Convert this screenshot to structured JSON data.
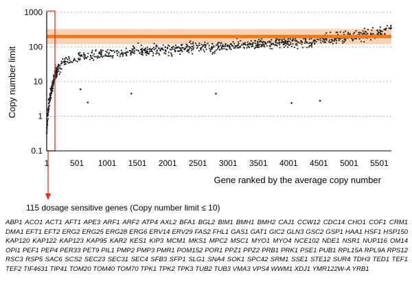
{
  "chart_data": {
    "type": "scatter",
    "scale_y": "log",
    "ylabel": "Copy number limit",
    "xlabel": "Gene ranked by the average copy number",
    "ylim": [
      0.1,
      1000
    ],
    "xlim": [
      1,
      5700
    ],
    "y_ticks": [
      "0.1",
      "1",
      "10",
      "100",
      "1000"
    ],
    "x_ticks": [
      "1",
      "501",
      "1001",
      "1501",
      "2001",
      "2501",
      "3001",
      "3501",
      "4001",
      "4501",
      "5001",
      "5501"
    ],
    "grid": "horizontal dotted at decades",
    "series": [
      {
        "color": "#222222",
        "points_approx": [
          [
            1,
            0.3
          ],
          [
            20,
            1.2
          ],
          [
            50,
            3
          ],
          [
            100,
            8
          ],
          [
            150,
            18
          ],
          [
            200,
            25
          ],
          [
            300,
            38
          ],
          [
            500,
            52
          ],
          [
            1001,
            65
          ],
          [
            1501,
            75
          ],
          [
            2001,
            85
          ],
          [
            2501,
            95
          ],
          [
            3001,
            105
          ],
          [
            3501,
            120
          ],
          [
            4001,
            135
          ],
          [
            4501,
            160
          ],
          [
            5001,
            195
          ],
          [
            5501,
            240
          ],
          [
            5650,
            330
          ]
        ],
        "outliers": [
          [
            560,
            6
          ],
          [
            680,
            2.5
          ],
          [
            1400,
            4.5
          ],
          [
            2800,
            4.5
          ],
          [
            4050,
            2.4
          ],
          [
            4520,
            2.8
          ]
        ]
      }
    ],
    "reference_band": {
      "center": 200,
      "low": 120,
      "high": 330,
      "color": "#f07a1a"
    },
    "highlight_region": {
      "x_from": 1,
      "x_to": 115,
      "color": "#e0302a"
    },
    "caption": "115 dosage sensitive genes (Copy number limit ≤ 10)",
    "genes": "ABP1 ACO1 ACT1 AFT1 APE3 ARF1 ARF2 ATP4 AXL2 BFA1 BGL2 BIM1 BMH1 BMH2 CAJ1 CCW12 CDC14 CHO1 COF1 CRM1 DMA1 EFT1 EFT2 ERG2 ERG25 ERG28 ERG6 ERV14 ERV29 FAS2 FHL1 GAS1 GAT1 GIC2 GLN3 GSC2 GSP1 HAA1 HSF1 HSP150 KAP120 KAP122 KAP123 KAP95 KAR2 KES1 KIP3 MCM1 MKS1 MPC2 MSC1 MYO1 MYO4 NCE102 NDE1 NSR1 NUP116 OM14 OPI1 PEF1 PEP4 PER33 PET9 PIL1 PMP2 PMP3 PMR1 POM152 POR1 PPZ1 PPZ2 PRB1 PRK1 PSE1 PUB1 RPL15A RPL9A RPS12 RSC3 RSP5 SAC6 SCS2 SEC23 SEC31 SEC4 SFB3 SFP1 SLG1 SNA4 SOK1 SPC42 SRM1 SSE1 STE12 SUR4 TDH3 TED1 TEF1 TEF2 TIF4631 TIP41 TOM20 TOM40 TOM70 TPK1 TPK2 TPK3 TUB2 TUB3 VMA3 VPS4 WWM1 XDJ1 YMR122W-A YRB1"
  }
}
